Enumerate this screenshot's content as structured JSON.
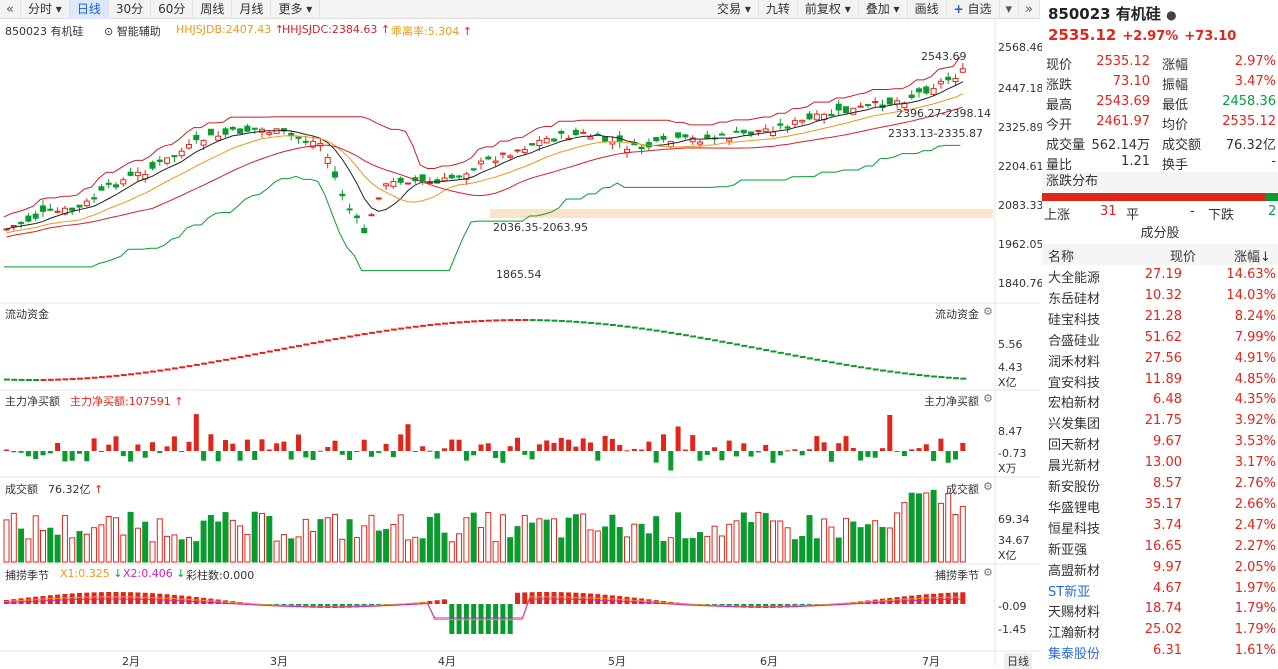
{
  "toolbar": {
    "left": [
      "分时",
      "日线",
      "30分",
      "60分",
      "周线",
      "月线",
      "更多"
    ],
    "active": "日线",
    "right": [
      "交易",
      "九转",
      "前复权",
      "叠加",
      "画线",
      "自选"
    ]
  },
  "chart": {
    "title": "850023 有机硅",
    "assist": "智能辅助",
    "ma1": "HHJSJDB:2407.43",
    "ma2": "HHJSJDC:2384.63",
    "ma3": "乖离率:5.304",
    "price_axis": [
      "2568.46",
      "2447.18",
      "2325.89",
      "2204.61",
      "2083.33",
      "1962.05",
      "1840.76"
    ],
    "ann_high": "2543.69",
    "ann_r1": "2396.27-2398.14",
    "ann_r2": "2333.13-2335.87",
    "ann_low_range": "2036.35-2063.95",
    "ann_low": "1865.54",
    "flow_title": "流动资金",
    "flow_right": "流动资金",
    "flow_axis": [
      "5.56",
      "4.43",
      "X亿"
    ],
    "net_title": "主力净买额",
    "net_value": "主力净买额:107591",
    "net_right": "主力净买额",
    "net_axis": [
      "8.47",
      "-0.73",
      "X万"
    ],
    "vol_title": "成交额",
    "vol_value": "76.32亿",
    "vol_right": "成交额",
    "vol_axis": [
      "69.34",
      "34.67",
      "X亿"
    ],
    "cap_title": "捕捞季节",
    "cap_x1": "X1:0.325",
    "cap_x2": "X2:0.406",
    "cap_bar": "彩柱数:0.000",
    "cap_right": "捕捞季节",
    "cap_axis": [
      "-0.09",
      "-1.45"
    ],
    "months": [
      "2月",
      "3月",
      "4月",
      "5月",
      "6月",
      "7月"
    ],
    "period": "日线"
  },
  "colors": {
    "up": "#e0251b",
    "down": "#0a9b2e",
    "ma1": "#e89a1c",
    "ma2": "#d8202a",
    "accent": "#1a5fc9"
  },
  "quote": {
    "code": "850023 有机硅",
    "price": "2535.12",
    "pct": "+2.97%",
    "chg": "+73.10",
    "rows": [
      [
        "现价",
        "2535.12",
        "涨幅",
        "2.97%"
      ],
      [
        "涨跌",
        "73.10",
        "振幅",
        "3.47%"
      ],
      [
        "最高",
        "2543.69",
        "最低",
        "2458.36"
      ],
      [
        "今开",
        "2461.97",
        "均价",
        "2535.12"
      ],
      [
        "成交量",
        "562.14万",
        "成交额",
        "76.32亿"
      ],
      [
        "量比",
        "1.21",
        "换手",
        "-"
      ]
    ],
    "dist_title": "涨跌分布",
    "up_label": "上涨",
    "up_count": "31",
    "flat_label": "平",
    "flat_count": "-",
    "down_label": "下跌",
    "down_count": "2",
    "cons_title": "成分股",
    "cols": [
      "名称",
      "现价",
      "涨幅↓"
    ],
    "stocks": [
      [
        "大全能源",
        "27.19",
        "14.63%"
      ],
      [
        "东岳硅材",
        "10.32",
        "14.03%"
      ],
      [
        "硅宝科技",
        "21.28",
        "8.24%"
      ],
      [
        "合盛硅业",
        "51.62",
        "7.99%"
      ],
      [
        "润禾材料",
        "27.56",
        "4.91%"
      ],
      [
        "宜安科技",
        "11.89",
        "4.85%"
      ],
      [
        "宏柏新材",
        "6.48",
        "4.35%"
      ],
      [
        "兴发集团",
        "21.75",
        "3.92%"
      ],
      [
        "回天新材",
        "9.67",
        "3.53%"
      ],
      [
        "晨光新材",
        "13.00",
        "3.17%"
      ],
      [
        "新安股份",
        "8.57",
        "2.76%"
      ],
      [
        "华盛锂电",
        "35.17",
        "2.66%"
      ],
      [
        "恒星科技",
        "3.74",
        "2.47%"
      ],
      [
        "新亚强",
        "16.65",
        "2.27%"
      ],
      [
        "高盟新材",
        "9.97",
        "2.05%"
      ],
      [
        "ST新亚",
        "4.67",
        "1.97%"
      ],
      [
        "天赐材料",
        "18.74",
        "1.79%"
      ],
      [
        "江瀚新材",
        "25.02",
        "1.79%"
      ],
      [
        "集泰股份",
        "6.31",
        "1.61%"
      ]
    ]
  }
}
